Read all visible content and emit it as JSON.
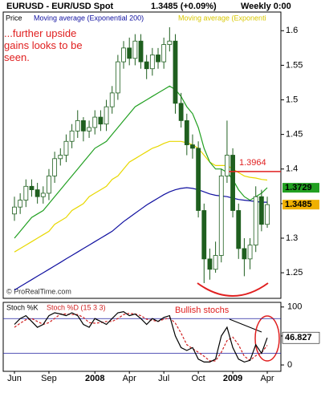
{
  "chart_data": [
    {
      "type": "candlestick",
      "title": "EURUSD - EUR/USD Spot",
      "subtitle": "1.3485 (+0.09%)",
      "period": "Weekly 0:00",
      "price_name": "Price",
      "annotation": "...further upside gains looks to be seen.",
      "credit": "© ProRealTime.com",
      "resistance": 1.3964,
      "categories": [
        "Jun",
        null,
        null,
        null,
        null,
        null,
        "Sep",
        null,
        null,
        null,
        null,
        null,
        null,
        null,
        "2008",
        null,
        null,
        null,
        null,
        null,
        "Apr",
        null,
        null,
        null,
        null,
        null,
        "Jul",
        null,
        null,
        null,
        null,
        null,
        "Oct",
        null,
        null,
        null,
        null,
        null,
        "2009",
        null,
        null,
        null,
        null,
        null,
        "Apr"
      ],
      "open": [
        1.335,
        1.345,
        1.355,
        1.375,
        1.37,
        1.36,
        1.365,
        1.39,
        1.415,
        1.42,
        1.44,
        1.455,
        1.47,
        1.455,
        1.46,
        1.475,
        1.465,
        1.49,
        1.51,
        1.555,
        1.575,
        1.56,
        1.585,
        1.555,
        1.545,
        1.565,
        1.555,
        1.58,
        1.585,
        1.495,
        1.47,
        1.435,
        1.43,
        1.34,
        1.27,
        1.255,
        1.275,
        1.39,
        1.42,
        1.34,
        1.285,
        1.27,
        1.29,
        1.36,
        1.32
      ],
      "high": [
        1.36,
        1.365,
        1.385,
        1.385,
        1.38,
        1.375,
        1.4,
        1.425,
        1.43,
        1.45,
        1.465,
        1.485,
        1.475,
        1.47,
        1.485,
        1.485,
        1.5,
        1.52,
        1.565,
        1.585,
        1.59,
        1.595,
        1.595,
        1.565,
        1.575,
        1.575,
        1.59,
        1.605,
        1.595,
        1.51,
        1.48,
        1.45,
        1.44,
        1.35,
        1.285,
        1.295,
        1.4,
        1.47,
        1.43,
        1.35,
        1.3,
        1.3,
        1.375,
        1.37,
        1.36
      ],
      "low": [
        1.325,
        1.335,
        1.345,
        1.36,
        1.35,
        1.35,
        1.355,
        1.38,
        1.405,
        1.41,
        1.43,
        1.445,
        1.44,
        1.445,
        1.45,
        1.455,
        1.455,
        1.48,
        1.5,
        1.545,
        1.55,
        1.55,
        1.545,
        1.53,
        1.535,
        1.545,
        1.545,
        1.57,
        1.48,
        1.46,
        1.42,
        1.415,
        1.33,
        1.235,
        1.24,
        1.25,
        1.265,
        1.38,
        1.33,
        1.27,
        1.245,
        1.255,
        1.28,
        1.31,
        1.315
      ],
      "close": [
        1.345,
        1.355,
        1.375,
        1.37,
        1.36,
        1.365,
        1.39,
        1.415,
        1.42,
        1.44,
        1.455,
        1.47,
        1.455,
        1.46,
        1.475,
        1.465,
        1.49,
        1.51,
        1.555,
        1.575,
        1.56,
        1.585,
        1.555,
        1.545,
        1.565,
        1.555,
        1.58,
        1.585,
        1.495,
        1.47,
        1.435,
        1.43,
        1.34,
        1.27,
        1.255,
        1.275,
        1.39,
        1.42,
        1.34,
        1.285,
        1.27,
        1.29,
        1.36,
        1.32,
        1.3485
      ],
      "up_color": "#ffffff",
      "down_color": "#1f5f1f",
      "candle_stroke": "#1f5f1f",
      "series": [
        {
          "name": "Moving average (Exponential 200)",
          "color": "#1010a0",
          "values": [
            1.225,
            1.23,
            1.235,
            1.24,
            1.245,
            1.25,
            1.255,
            1.26,
            1.265,
            1.27,
            1.275,
            1.28,
            1.285,
            1.29,
            1.295,
            1.3,
            1.305,
            1.31,
            1.317,
            1.324,
            1.33,
            1.336,
            1.342,
            1.348,
            1.353,
            1.358,
            1.363,
            1.367,
            1.37,
            1.372,
            1.373,
            1.372,
            1.37,
            1.367,
            1.364,
            1.362,
            1.361,
            1.36,
            1.358,
            1.356,
            1.355,
            1.354,
            1.353,
            1.352,
            1.352
          ]
        },
        {
          "name": "Moving average (Exponenti",
          "color": "#e8d800",
          "values": [
            1.28,
            1.285,
            1.29,
            1.295,
            1.3,
            1.305,
            1.31,
            1.32,
            1.325,
            1.33,
            1.34,
            1.345,
            1.35,
            1.36,
            1.365,
            1.37,
            1.375,
            1.385,
            1.39,
            1.4,
            1.41,
            1.415,
            1.42,
            1.425,
            1.43,
            1.433,
            1.437,
            1.44,
            1.44,
            1.44,
            1.438,
            1.435,
            1.43,
            1.42,
            1.41,
            1.405,
            1.405,
            1.405,
            1.4,
            1.395,
            1.39,
            1.388,
            1.387,
            1.385,
            1.384
          ]
        },
        {
          "color": "#22a022",
          "values": [
            1.3,
            1.31,
            1.32,
            1.33,
            1.335,
            1.34,
            1.35,
            1.36,
            1.37,
            1.38,
            1.39,
            1.4,
            1.41,
            1.42,
            1.43,
            1.435,
            1.44,
            1.45,
            1.46,
            1.47,
            1.48,
            1.49,
            1.495,
            1.5,
            1.505,
            1.51,
            1.515,
            1.52,
            1.515,
            1.505,
            1.49,
            1.48,
            1.46,
            1.43,
            1.41,
            1.4,
            1.4,
            1.395,
            1.385,
            1.37,
            1.36,
            1.355,
            1.36,
            1.365,
            1.3729
          ]
        }
      ],
      "ylim": [
        1.213,
        1.627
      ],
      "yticks": [
        1.25,
        1.3,
        1.35,
        1.4,
        1.45,
        1.5,
        1.55,
        1.6
      ]
    },
    {
      "type": "stochastic",
      "title": "Stoch %K",
      "annotation": "Bullish stochs",
      "series": [
        {
          "name": "Stoch %D (15 3 3)",
          "color": "#d02020",
          "values": [
            65,
            72,
            78,
            80,
            75,
            70,
            73,
            80,
            88,
            88,
            87,
            87,
            82,
            73,
            72,
            73,
            75,
            75,
            80,
            87,
            89,
            88,
            85,
            79,
            77,
            75,
            79,
            81,
            72,
            55,
            35,
            28,
            22,
            15,
            7,
            7,
            22,
            42,
            48,
            35,
            15,
            8,
            16,
            21,
            34
          ]
        },
        {
          "color": "#000000",
          "values": [
            70,
            80,
            85,
            75,
            65,
            70,
            85,
            90,
            88,
            85,
            90,
            85,
            70,
            65,
            80,
            75,
            70,
            80,
            90,
            92,
            85,
            88,
            80,
            70,
            80,
            75,
            82,
            85,
            50,
            30,
            25,
            30,
            10,
            5,
            5,
            10,
            50,
            65,
            30,
            10,
            5,
            8,
            35,
            20,
            46.827
          ]
        }
      ],
      "levels": [
        20,
        80
      ],
      "level_color": "#2020a0",
      "ylim": [
        -11,
        108
      ],
      "yticks": [
        0,
        50,
        100
      ]
    }
  ]
}
